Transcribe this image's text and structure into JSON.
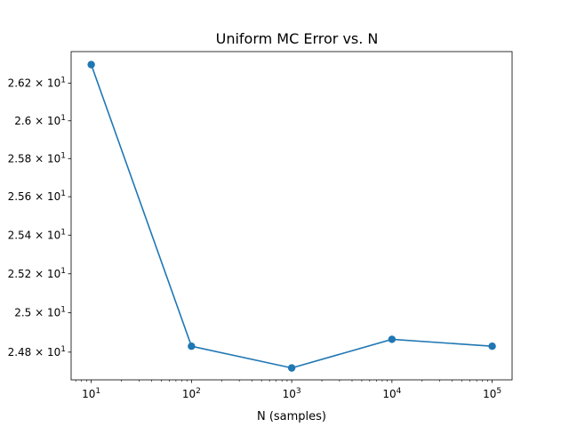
{
  "chart_data": {
    "type": "line",
    "title": "Uniform MC Error vs. N",
    "xlabel": "N (samples)",
    "ylabel": "",
    "xscale": "log",
    "yscale": "log",
    "x": [
      10,
      100,
      1000,
      10000,
      100000
    ],
    "series": [
      {
        "name": "",
        "values": [
          26.3,
          24.83,
          24.72,
          24.865,
          24.83
        ],
        "color": "#1f77b4",
        "marker": "circle"
      }
    ],
    "xlim": [
      6.3,
      158000
    ],
    "ylim": [
      24.66,
      26.37
    ],
    "x_ticks": [
      {
        "value": 10,
        "base": "10",
        "exp": "1"
      },
      {
        "value": 100,
        "base": "10",
        "exp": "2"
      },
      {
        "value": 1000,
        "base": "10",
        "exp": "3"
      },
      {
        "value": 10000,
        "base": "10",
        "exp": "4"
      },
      {
        "value": 100000,
        "base": "10",
        "exp": "5"
      }
    ],
    "y_ticks": [
      {
        "value": 24.8,
        "mant": "2.48",
        "base": "10",
        "exp": "1"
      },
      {
        "value": 25.0,
        "mant": "2.5",
        "base": "10",
        "exp": "1"
      },
      {
        "value": 25.2,
        "mant": "2.52",
        "base": "10",
        "exp": "1"
      },
      {
        "value": 25.4,
        "mant": "2.54",
        "base": "10",
        "exp": "1"
      },
      {
        "value": 25.6,
        "mant": "2.56",
        "base": "10",
        "exp": "1"
      },
      {
        "value": 25.8,
        "mant": "2.58",
        "base": "10",
        "exp": "1"
      },
      {
        "value": 26.0,
        "mant": "2.6",
        "base": "10",
        "exp": "1"
      },
      {
        "value": 26.2,
        "mant": "2.62",
        "base": "10",
        "exp": "1"
      }
    ],
    "grid": false,
    "legend": "none"
  }
}
